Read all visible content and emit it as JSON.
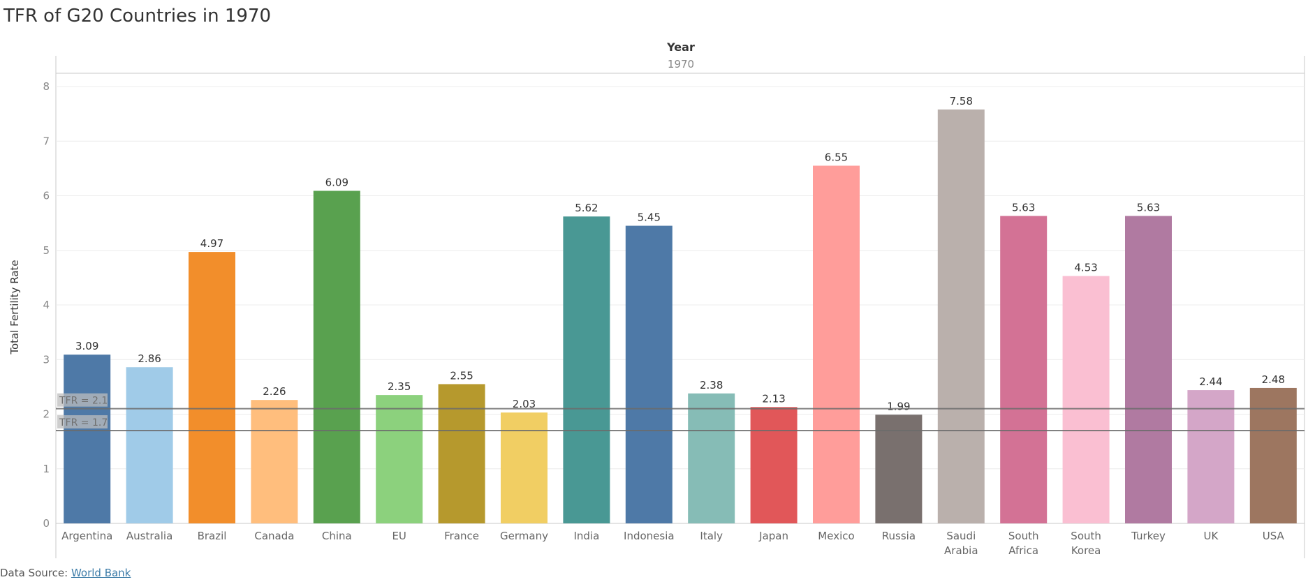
{
  "title": "TFR of G20 Countries in 1970",
  "source": {
    "label": "Data Source:",
    "link_text": "World Bank"
  },
  "chart_data": {
    "type": "bar",
    "column_header": "Year",
    "column_value": "1970",
    "ylabel": "Total Fertility Rate",
    "xlabel": "",
    "ylim": [
      0,
      8
    ],
    "yticks": [
      0,
      1,
      2,
      3,
      4,
      5,
      6,
      7,
      8
    ],
    "grid": true,
    "categories": [
      "Argentina",
      "Australia",
      "Brazil",
      "Canada",
      "China",
      "EU",
      "France",
      "Germany",
      "India",
      "Indonesia",
      "Italy",
      "Japan",
      "Mexico",
      "Russia",
      "Saudi Arabia",
      "South Africa",
      "South Korea",
      "Turkey",
      "UK",
      "USA"
    ],
    "values": [
      3.09,
      2.86,
      4.97,
      2.26,
      6.09,
      2.35,
      2.55,
      2.03,
      5.62,
      5.45,
      2.38,
      2.13,
      6.55,
      1.99,
      7.58,
      5.63,
      4.53,
      5.63,
      2.44,
      2.48
    ],
    "colors": [
      "#4e79a7",
      "#a0cbe8",
      "#f28e2b",
      "#ffbe7d",
      "#59a14f",
      "#8cd17d",
      "#b6992d",
      "#f1ce63",
      "#499894",
      "#4e79a7",
      "#86bcb6",
      "#e15759",
      "#ff9d9a",
      "#79706e",
      "#bab0ac",
      "#d37295",
      "#fabfd2",
      "#b07aa1",
      "#d4a6c8",
      "#9d7660"
    ],
    "reference_lines": [
      {
        "label": "TFR = 2.1",
        "value": 2.1
      },
      {
        "label": "TFR = 1.7",
        "value": 1.7
      }
    ]
  }
}
